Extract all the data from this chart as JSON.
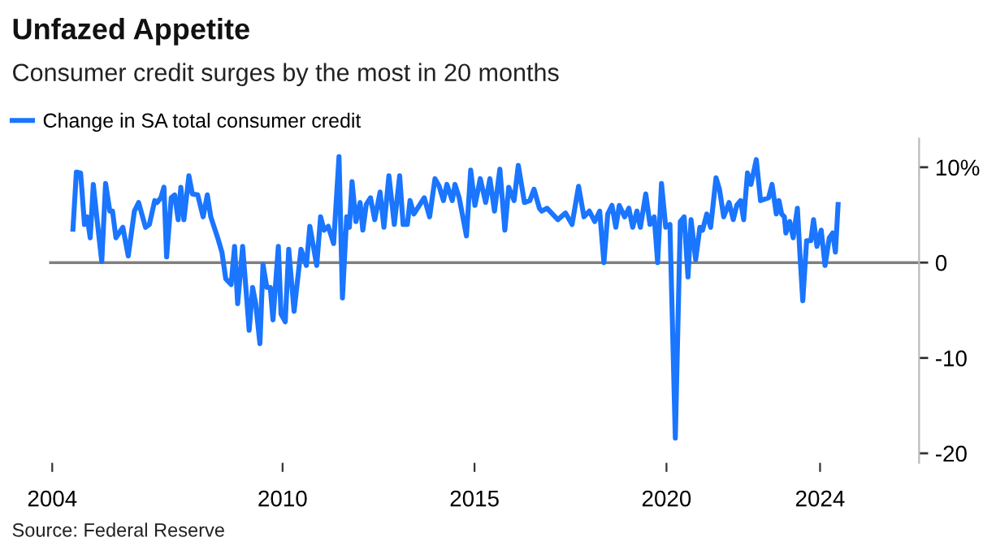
{
  "chart_data": {
    "type": "line",
    "title": "Unfazed Appetite",
    "subtitle": "Consumer credit surges by the most in 20 months",
    "x": [
      2004.54,
      2004.63,
      2004.74,
      2004.84,
      2004.91,
      2004.99,
      2005.07,
      2005.16,
      2005.29,
      2005.39,
      2005.5,
      2005.57,
      2005.66,
      2005.84,
      2005.98,
      2006.14,
      2006.25,
      2006.43,
      2006.53,
      2006.67,
      2006.73,
      2006.83,
      2006.91,
      2006.98,
      2007.1,
      2007.19,
      2007.28,
      2007.35,
      2007.43,
      2007.56,
      2007.65,
      2007.79,
      2007.93,
      2008.04,
      2008.13,
      2008.31,
      2008.42,
      2008.52,
      2008.66,
      2008.75,
      2008.83,
      2008.96,
      2009.13,
      2009.22,
      2009.3,
      2009.41,
      2009.49,
      2009.59,
      2009.68,
      2009.75,
      2009.89,
      2009.96,
      2010.07,
      2010.16,
      2010.3,
      2010.48,
      2010.62,
      2010.71,
      2010.89,
      2010.99,
      2011.08,
      2011.19,
      2011.33,
      2011.47,
      2011.56,
      2011.67,
      2011.74,
      2011.81,
      2011.91,
      2012.02,
      2012.09,
      2012.18,
      2012.29,
      2012.4,
      2012.54,
      2012.64,
      2012.77,
      2012.91,
      2013.05,
      2013.14,
      2013.25,
      2013.32,
      2013.42,
      2013.69,
      2013.83,
      2013.97,
      2014.08,
      2014.19,
      2014.28,
      2014.42,
      2014.49,
      2014.6,
      2014.79,
      2014.9,
      2015.01,
      2015.15,
      2015.29,
      2015.4,
      2015.52,
      2015.66,
      2015.79,
      2015.89,
      2016.03,
      2016.14,
      2016.3,
      2016.44,
      2016.55,
      2016.69,
      2016.75,
      2016.89,
      2017.17,
      2017.37,
      2017.54,
      2017.71,
      2017.85,
      2017.99,
      2018.13,
      2018.26,
      2018.37,
      2018.47,
      2018.58,
      2018.68,
      2018.77,
      2018.91,
      2019.02,
      2019.12,
      2019.23,
      2019.32,
      2019.46,
      2019.57,
      2019.68,
      2019.77,
      2019.87,
      2019.98,
      2020.09,
      2020.23,
      2020.36,
      2020.46,
      2020.56,
      2020.64,
      2020.76,
      2020.87,
      2020.94,
      2021.05,
      2021.15,
      2021.29,
      2021.38,
      2021.49,
      2021.63,
      2021.74,
      2021.83,
      2021.93,
      2022.01,
      2022.11,
      2022.2,
      2022.34,
      2022.45,
      2022.66,
      2022.75,
      2022.86,
      2022.93,
      2023.0,
      2023.07,
      2023.11,
      2023.21,
      2023.3,
      2023.41,
      2023.48,
      2023.55,
      2023.65,
      2023.76,
      2023.83,
      2023.92,
      2024.03,
      2024.13,
      2024.24,
      2024.33,
      2024.4,
      2024.47
    ],
    "series": [
      {
        "name": "Change in SA total consumer credit",
        "color": "#1a75ff",
        "values": [
          3.5,
          9.5,
          9.4,
          4.0,
          4.8,
          2.6,
          8.2,
          4.8,
          0.1,
          8.3,
          5.4,
          5.4,
          2.6,
          3.7,
          0.7,
          5.4,
          6.3,
          3.7,
          4.0,
          6.5,
          6.3,
          6.8,
          7.9,
          0.6,
          6.8,
          7.1,
          4.5,
          7.9,
          4.5,
          9.1,
          7.2,
          7.1,
          4.8,
          7.1,
          4.8,
          2.6,
          1.1,
          -1.7,
          -2.3,
          1.7,
          -4.3,
          1.7,
          -7.1,
          -2.6,
          -4.3,
          -8.5,
          -0.2,
          -2.6,
          -2.6,
          -6.0,
          1.7,
          -5.4,
          -6.2,
          1.4,
          -5.1,
          1.4,
          -0.3,
          3.8,
          -0.3,
          4.8,
          3.4,
          3.8,
          2.0,
          11.1,
          -3.7,
          4.8,
          3.7,
          8.5,
          4.3,
          6.3,
          3.4,
          6.1,
          6.8,
          4.5,
          7.4,
          3.7,
          9.1,
          4.0,
          9.1,
          4.0,
          4.0,
          6.5,
          5.1,
          6.8,
          4.8,
          8.8,
          8.0,
          6.5,
          8.2,
          6.5,
          8.2,
          6.8,
          2.8,
          9.7,
          6.0,
          8.8,
          6.3,
          8.8,
          5.4,
          9.8,
          3.4,
          7.9,
          6.5,
          10.2,
          6.3,
          6.5,
          7.7,
          5.7,
          5.4,
          5.7,
          4.5,
          5.2,
          4.0,
          8.0,
          4.8,
          5.4,
          4.3,
          5.4,
          0.0,
          5.1,
          6.0,
          3.7,
          6.0,
          4.8,
          5.7,
          3.7,
          5.4,
          3.7,
          7.2,
          4.0,
          4.8,
          0.0,
          8.3,
          3.7,
          4.0,
          -18.4,
          4.3,
          4.8,
          -1.5,
          4.5,
          0.3,
          3.7,
          3.4,
          5.1,
          3.7,
          8.9,
          7.7,
          4.8,
          6.3,
          4.5,
          6.0,
          6.5,
          4.5,
          9.4,
          8.2,
          10.8,
          6.5,
          6.8,
          8.2,
          5.1,
          6.5,
          5.1,
          4.8,
          3.1,
          4.3,
          2.6,
          5.7,
          0.6,
          -4.0,
          2.3,
          2.3,
          4.5,
          1.7,
          3.4,
          -0.3,
          2.6,
          3.1,
          1.1,
          6.1
        ]
      }
    ],
    "xlim": [
      2003.92,
      2026.58
    ],
    "ylim": [
      -21,
      13
    ],
    "xticks": [
      2004,
      2010,
      2015,
      2020,
      2024
    ],
    "yticks": [
      {
        "value": 10,
        "label": "10%"
      },
      0,
      -10,
      -20
    ],
    "ref_lines": [
      {
        "axis": "y",
        "value": 0,
        "color": "#808080"
      }
    ],
    "legend": "top left",
    "grid": false,
    "marker": "none",
    "line_style": "solid",
    "annotations": [
      "Source: Federal Reserve"
    ]
  }
}
